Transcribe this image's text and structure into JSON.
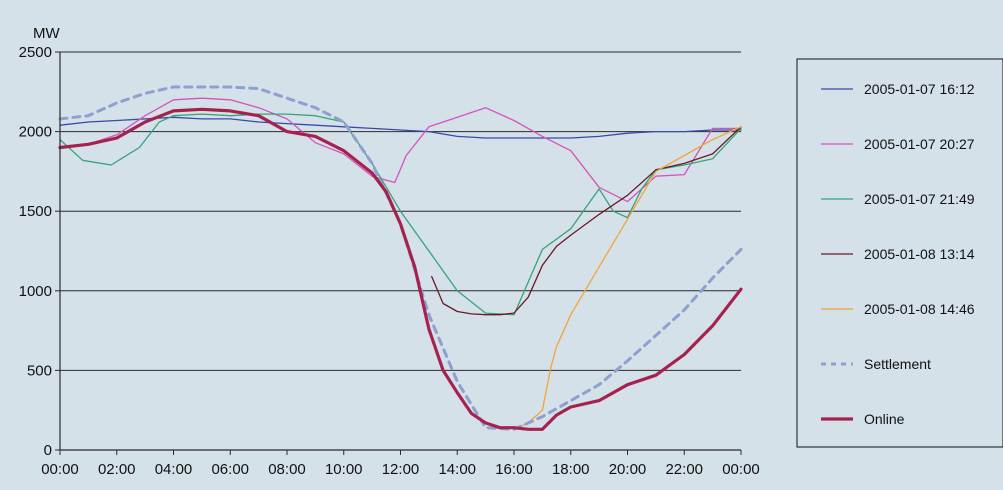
{
  "chart_data": {
    "type": "line",
    "ylabel": "MW",
    "ylim": [
      0,
      2500
    ],
    "xlim": [
      "00:00",
      "24:00"
    ],
    "x_tick_labels": [
      "00:00",
      "02:00",
      "04:00",
      "06:00",
      "08:00",
      "10:00",
      "12:00",
      "14:00",
      "16:00",
      "18:00",
      "20:00",
      "22:00",
      "00:00"
    ],
    "y_tick_labels": [
      "0",
      "500",
      "1000",
      "1500",
      "2000",
      "2500"
    ],
    "grid": "horizontal",
    "legend": "right",
    "series": [
      {
        "name": "2005-01-07 16:12",
        "color": "#3b4aa8",
        "style": "solid",
        "x": [
          0,
          1,
          2,
          3,
          4,
          5,
          6,
          7,
          8,
          9,
          10,
          11,
          12,
          13,
          14,
          15,
          16,
          17,
          18,
          19,
          20,
          21,
          22,
          23,
          24
        ],
        "y": [
          2040,
          2060,
          2070,
          2080,
          2090,
          2080,
          2080,
          2060,
          2050,
          2040,
          2030,
          2020,
          2010,
          2000,
          1970,
          1960,
          1960,
          1960,
          1960,
          1970,
          1990,
          2000,
          2000,
          2010,
          2010
        ]
      },
      {
        "name": "2005-01-07 20:27",
        "color": "#d453c0",
        "style": "solid",
        "x": [
          0,
          1,
          2,
          3,
          4,
          5,
          6,
          7,
          8,
          9,
          10,
          11,
          11.8,
          12.2,
          13,
          14,
          15,
          16,
          17,
          18,
          19,
          20,
          21,
          22,
          23,
          24
        ],
        "y": [
          1900,
          1920,
          1980,
          2100,
          2200,
          2210,
          2200,
          2150,
          2080,
          1930,
          1860,
          1720,
          1680,
          1850,
          2030,
          2090,
          2150,
          2070,
          1970,
          1880,
          1650,
          1560,
          1720,
          1730,
          2020,
          2020
        ]
      },
      {
        "name": "2005-01-07 21:49",
        "color": "#36a37a",
        "style": "solid",
        "x": [
          0,
          0.8,
          1.8,
          2.8,
          3.5,
          4,
          5,
          6,
          7,
          8,
          9,
          10,
          11,
          12,
          13,
          14,
          15,
          16,
          17,
          18,
          19,
          19.5,
          20,
          20.5,
          21,
          22,
          23,
          24
        ],
        "y": [
          1950,
          1820,
          1790,
          1900,
          2060,
          2100,
          2110,
          2100,
          2110,
          2110,
          2100,
          2060,
          1800,
          1500,
          1250,
          1000,
          860,
          850,
          1260,
          1390,
          1640,
          1500,
          1460,
          1640,
          1760,
          1790,
          1830,
          2020
        ]
      },
      {
        "name": "2005-01-08 13:14",
        "color": "#6b1a26",
        "style": "solid",
        "x": [
          13.1,
          13.5,
          14,
          14.5,
          15,
          15.5,
          16,
          16.5,
          17,
          17.5,
          18,
          19,
          20,
          21,
          22,
          23,
          24
        ],
        "y": [
          1090,
          920,
          870,
          855,
          850,
          850,
          860,
          960,
          1160,
          1280,
          1350,
          1480,
          1600,
          1760,
          1800,
          1860,
          2030
        ]
      },
      {
        "name": "2005-01-08 14:46",
        "color": "#f2a43a",
        "style": "solid",
        "x": [
          16,
          16.5,
          17,
          17.3,
          17.5,
          18,
          19,
          20,
          21,
          22,
          23,
          24
        ],
        "y": [
          130,
          170,
          250,
          520,
          650,
          850,
          1150,
          1450,
          1750,
          1850,
          1950,
          2030
        ]
      },
      {
        "name": "Settlement",
        "color": "#8f9fcf",
        "style": "dashed",
        "x": [
          0,
          1,
          2,
          3,
          4,
          5,
          6,
          7,
          8,
          9,
          10,
          11,
          12,
          13,
          14,
          15,
          16,
          17,
          18,
          19,
          20,
          21,
          22,
          23,
          24
        ],
        "y": [
          2080,
          2100,
          2180,
          2240,
          2280,
          2280,
          2280,
          2270,
          2210,
          2150,
          2060,
          1800,
          1420,
          850,
          430,
          140,
          130,
          210,
          310,
          410,
          560,
          720,
          880,
          1080,
          1260
        ]
      },
      {
        "name": "Online",
        "color": "#a6224e",
        "style": "thick",
        "x": [
          0,
          1,
          2,
          3,
          4,
          5,
          6,
          7,
          8,
          9,
          10,
          11,
          11.5,
          12,
          12.5,
          13,
          13.5,
          14,
          14.5,
          15,
          15.5,
          16,
          16.5,
          17,
          17.5,
          18,
          19,
          20,
          21,
          22,
          23,
          24
        ],
        "y": [
          1900,
          1920,
          1960,
          2060,
          2130,
          2140,
          2130,
          2100,
          2000,
          1970,
          1880,
          1740,
          1620,
          1420,
          1150,
          760,
          500,
          360,
          230,
          170,
          140,
          140,
          130,
          130,
          220,
          270,
          310,
          410,
          470,
          600,
          780,
          1010
        ]
      }
    ]
  }
}
